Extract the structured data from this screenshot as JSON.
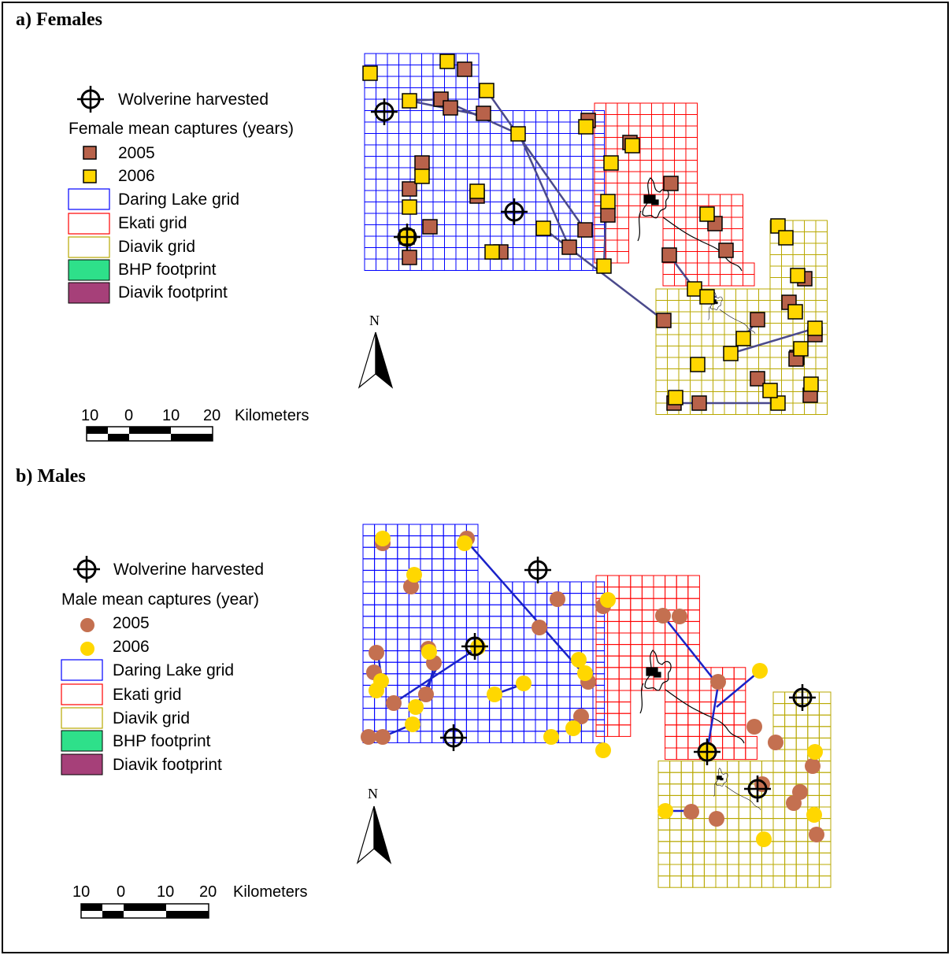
{
  "panels": [
    {
      "title": "a) Females",
      "legend": {
        "harvested": "Wolverine harvested",
        "captures_title": "Female mean captures (years)",
        "y2005": "2005",
        "y2006": "2006",
        "daring": "Daring Lake grid",
        "ekati": "Ekati grid",
        "diavik": "Diavik grid",
        "bhp": "BHP footprint",
        "diavik_fp": "Diavik footprint"
      },
      "north": "N",
      "scale": {
        "ticks": [
          "10",
          "0",
          "10",
          "20"
        ],
        "unit": "Kilometers"
      }
    },
    {
      "title": "b) Males",
      "legend": {
        "harvested": "Wolverine harvested",
        "captures_title": "Male mean captures (year)",
        "y2005": "2005",
        "y2006": "2006",
        "daring": "Daring Lake grid",
        "ekati": "Ekati grid",
        "diavik": "Diavik grid",
        "bhp": "BHP footprint",
        "diavik_fp": "Diavik footprint"
      },
      "north": "N",
      "scale": {
        "ticks": [
          "10",
          "0",
          "10",
          "20"
        ],
        "unit": "Kilometers"
      }
    }
  ],
  "colors": {
    "daring_grid": "#0000ff",
    "ekati_grid": "#ff0000",
    "diavik_grid": "#b8a800",
    "bhp_footprint": "#2ee08a",
    "diavik_footprint": "#a64079",
    "capture_2005": "#c47050",
    "capture_square_2005": "#b8624a",
    "capture_2006": "#ffd700",
    "movement_line": "#1a22c8",
    "female_line": "#4b4a8c"
  },
  "icons": {
    "harvested": "crosshair-icon",
    "north_arrow": "north-arrow-icon"
  }
}
